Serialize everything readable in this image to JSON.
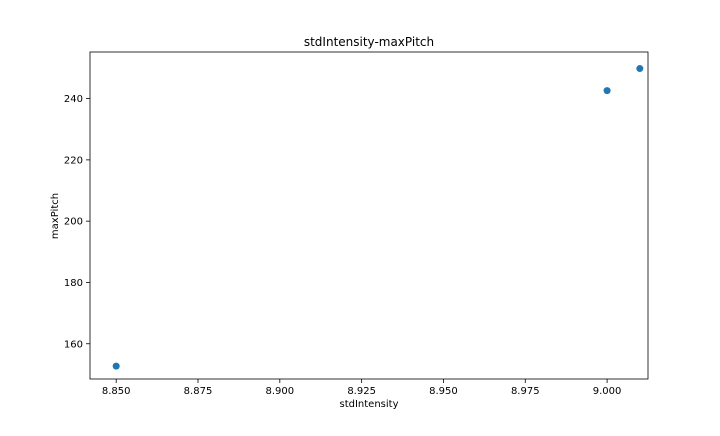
{
  "chart_data": {
    "type": "scatter",
    "title": "stdIntensity-maxPitch",
    "xlabel": "stdIntensity",
    "ylabel": "maxPitch",
    "xlim": [
      8.842,
      9.0125
    ],
    "ylim": [
      148.5,
      255.2
    ],
    "xticks": [
      8.85,
      8.875,
      8.9,
      8.925,
      8.95,
      8.975,
      9.0
    ],
    "xtick_labels": [
      "8.850",
      "8.875",
      "8.900",
      "8.925",
      "8.950",
      "8.975",
      "9.000"
    ],
    "yticks": [
      160,
      180,
      200,
      220,
      240
    ],
    "ytick_labels": [
      "160",
      "180",
      "200",
      "220",
      "240"
    ],
    "grid": false,
    "color": "#1f77b4",
    "series": [
      {
        "points": [
          {
            "x": 8.85,
            "y": 152.7
          },
          {
            "x": 9.0,
            "y": 242.6
          },
          {
            "x": 9.01,
            "y": 249.8
          }
        ]
      }
    ]
  }
}
